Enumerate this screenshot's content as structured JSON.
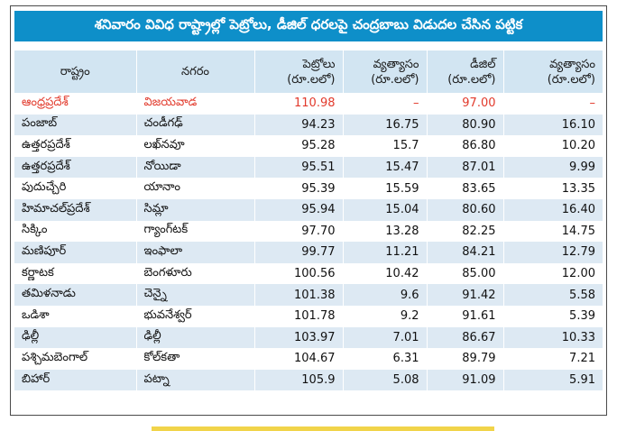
{
  "title": "శనివారం వివిధ రాష్ట్రాల్లో పెట్రోలు, డీజిల్ ధరలపై చంద్రబాబు విడుదల చేసిన పట్టిక",
  "columns": [
    {
      "line1": "రాష్ట్రం",
      "line2": ""
    },
    {
      "line1": "నగరం",
      "line2": ""
    },
    {
      "line1": "పెట్రోలు",
      "line2": "(రూ.లలో)"
    },
    {
      "line1": "వ్యత్యాసం",
      "line2": "(రూ.లలో)"
    },
    {
      "line1": "డీజిల్",
      "line2": "(రూ.లలో)"
    },
    {
      "line1": "వ్యత్యాసం",
      "line2": "(రూ.లలో)"
    }
  ],
  "rows": [
    {
      "state": "ఆంధ్రప్రదేశ్",
      "city": "విజయవాడ",
      "petrol": "110.98",
      "petrol_diff": "–",
      "diesel": "97.00",
      "diesel_diff": "–",
      "highlight": true
    },
    {
      "state": "పంజాబ్",
      "city": "చండీగఢ్",
      "petrol": "94.23",
      "petrol_diff": "16.75",
      "diesel": "80.90",
      "diesel_diff": "16.10"
    },
    {
      "state": "ఉత్తరప్రదేశ్",
      "city": "లఖ్‌నవూ",
      "petrol": "95.28",
      "petrol_diff": "15.7",
      "diesel": "86.80",
      "diesel_diff": "10.20"
    },
    {
      "state": "ఉత్తరప్రదేశ్",
      "city": "నోయిడా",
      "petrol": "95.51",
      "petrol_diff": "15.47",
      "diesel": "87.01",
      "diesel_diff": "9.99"
    },
    {
      "state": "పుదుచ్చేరి",
      "city": "యానాం",
      "petrol": "95.39",
      "petrol_diff": "15.59",
      "diesel": "83.65",
      "diesel_diff": "13.35"
    },
    {
      "state": "హిమాచల్‌ప్రదేశ్",
      "city": "సిమ్లా",
      "petrol": "95.94",
      "petrol_diff": "15.04",
      "diesel": "80.60",
      "diesel_diff": "16.40"
    },
    {
      "state": "సిక్కిం",
      "city": "గ్యాంగ్‌టక్",
      "petrol": "97.70",
      "petrol_diff": "13.28",
      "diesel": "82.25",
      "diesel_diff": "14.75"
    },
    {
      "state": "మణిపూర్",
      "city": "ఇంఫాలా",
      "petrol": "99.77",
      "petrol_diff": "11.21",
      "diesel": "84.21",
      "diesel_diff": "12.79"
    },
    {
      "state": "కర్ణాటక",
      "city": "బెంగళూరు",
      "petrol": "100.56",
      "petrol_diff": "10.42",
      "diesel": "85.00",
      "diesel_diff": "12.00"
    },
    {
      "state": "తమిళనాడు",
      "city": "చెన్నై",
      "petrol": "101.38",
      "petrol_diff": "9.6",
      "diesel": "91.42",
      "diesel_diff": "5.58"
    },
    {
      "state": "ఒడిశా",
      "city": "భువనేశ్వర్",
      "petrol": "101.78",
      "petrol_diff": "9.2",
      "diesel": "91.61",
      "diesel_diff": "5.39"
    },
    {
      "state": "ఢిల్లీ",
      "city": "ఢిల్లీ",
      "petrol": "103.97",
      "petrol_diff": "7.01",
      "diesel": "86.67",
      "diesel_diff": "10.33"
    },
    {
      "state": "పశ్చిమబెంగాల్",
      "city": "కోల్‌కతా",
      "petrol": "104.67",
      "petrol_diff": "6.31",
      "diesel": "89.79",
      "diesel_diff": "7.21"
    },
    {
      "state": "బిహార్",
      "city": "పట్నా",
      "petrol": "105.9",
      "petrol_diff": "5.08",
      "diesel": "91.09",
      "diesel_diff": "5.91"
    }
  ],
  "colors": {
    "title_bg": "#0e8fc9",
    "header_bg": "#d2e5f2",
    "stripe_bg": "#dde9f3",
    "highlight_text": "#e23a2c"
  }
}
